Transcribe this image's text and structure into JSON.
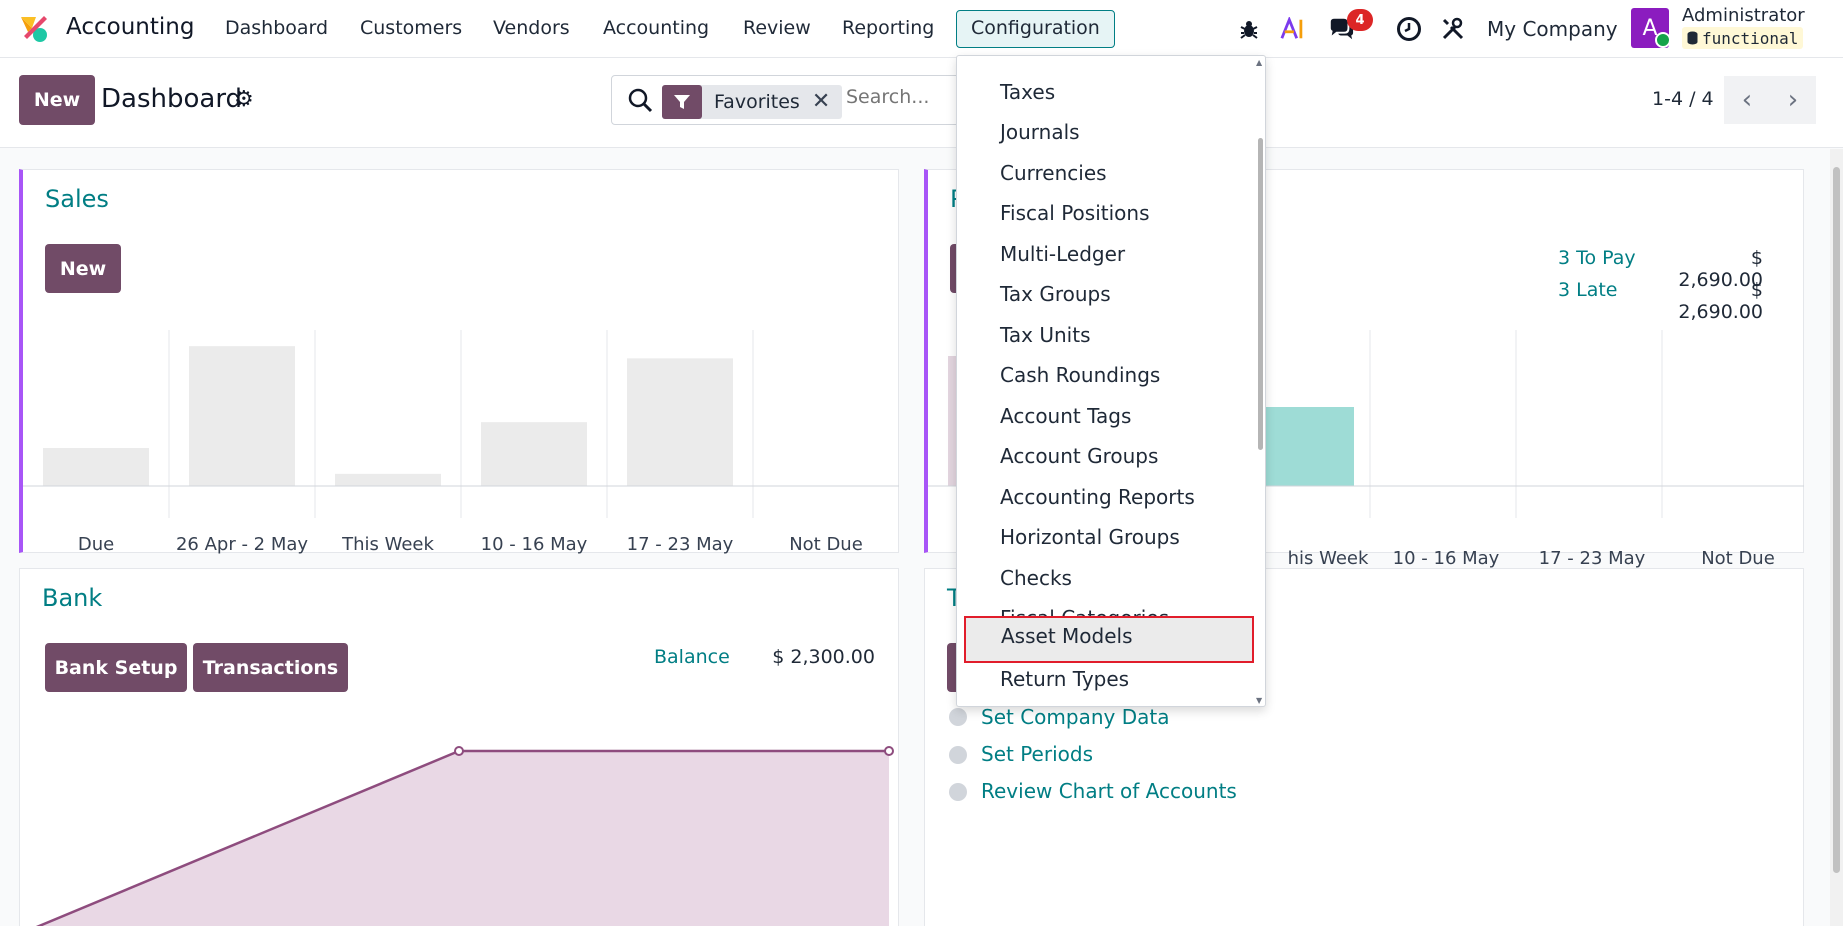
{
  "navbar": {
    "app_name": "Accounting",
    "menu": [
      "Dashboard",
      "Customers",
      "Vendors",
      "Accounting",
      "Review",
      "Reporting",
      "Configuration"
    ],
    "active_menu": "Configuration",
    "messages_count": "4",
    "company": "My Company",
    "user_initial": "A",
    "user_name": "Administrator",
    "database": "functional",
    "icons": [
      "bug-icon",
      "ai-icon",
      "chat-icon",
      "clock-icon",
      "tools-icon"
    ]
  },
  "control_panel": {
    "new_label": "New",
    "title": "Dashboard",
    "search": {
      "facet_label": "Favorites",
      "placeholder": "Search..."
    },
    "pager": "1-4 / 4"
  },
  "sales": {
    "title": "Sales",
    "new_label": "New",
    "chart_data": {
      "type": "bar",
      "categories": [
        "Due",
        "26 Apr - 2 May",
        "This Week",
        "10 - 16 May",
        "17 - 23 May",
        "Not Due"
      ],
      "values": [
        25,
        92,
        8,
        42,
        84,
        0
      ],
      "ylim": [
        0,
        100
      ]
    }
  },
  "purchases": {
    "title": "P",
    "to_pay_label": "3 To Pay",
    "to_pay_value": "$ 2,690.00",
    "late_label": "3 Late",
    "late_value": "$ 2,690.00",
    "visible_labels": [
      "his Week",
      "10 - 16 May",
      "17 - 23 May",
      "Not Due"
    ]
  },
  "bank": {
    "title": "Bank",
    "setup_label": "Bank Setup",
    "transactions_label": "Transactions",
    "balance_label": "Balance",
    "balance_value": "$ 2,300.00"
  },
  "setup_card": {
    "title": "T",
    "steps": [
      "Set Company Data",
      "Set Periods",
      "Review Chart of Accounts"
    ]
  },
  "config_menu": {
    "items": [
      "Taxes",
      "Journals",
      "Currencies",
      "Fiscal Positions",
      "Multi-Ledger",
      "Tax Groups",
      "Tax Units",
      "Cash Roundings",
      "Account Tags",
      "Account Groups",
      "Accounting Reports",
      "Horizontal Groups",
      "Checks",
      "Fiscal Categories",
      "Asset Models",
      "Return Types"
    ],
    "highlighted": "Asset Models"
  },
  "colors": {
    "brand": "#714b67",
    "accent_teal": "#017e84",
    "card_accent": "#a855f7",
    "highlight_border": "#e11d2b"
  }
}
